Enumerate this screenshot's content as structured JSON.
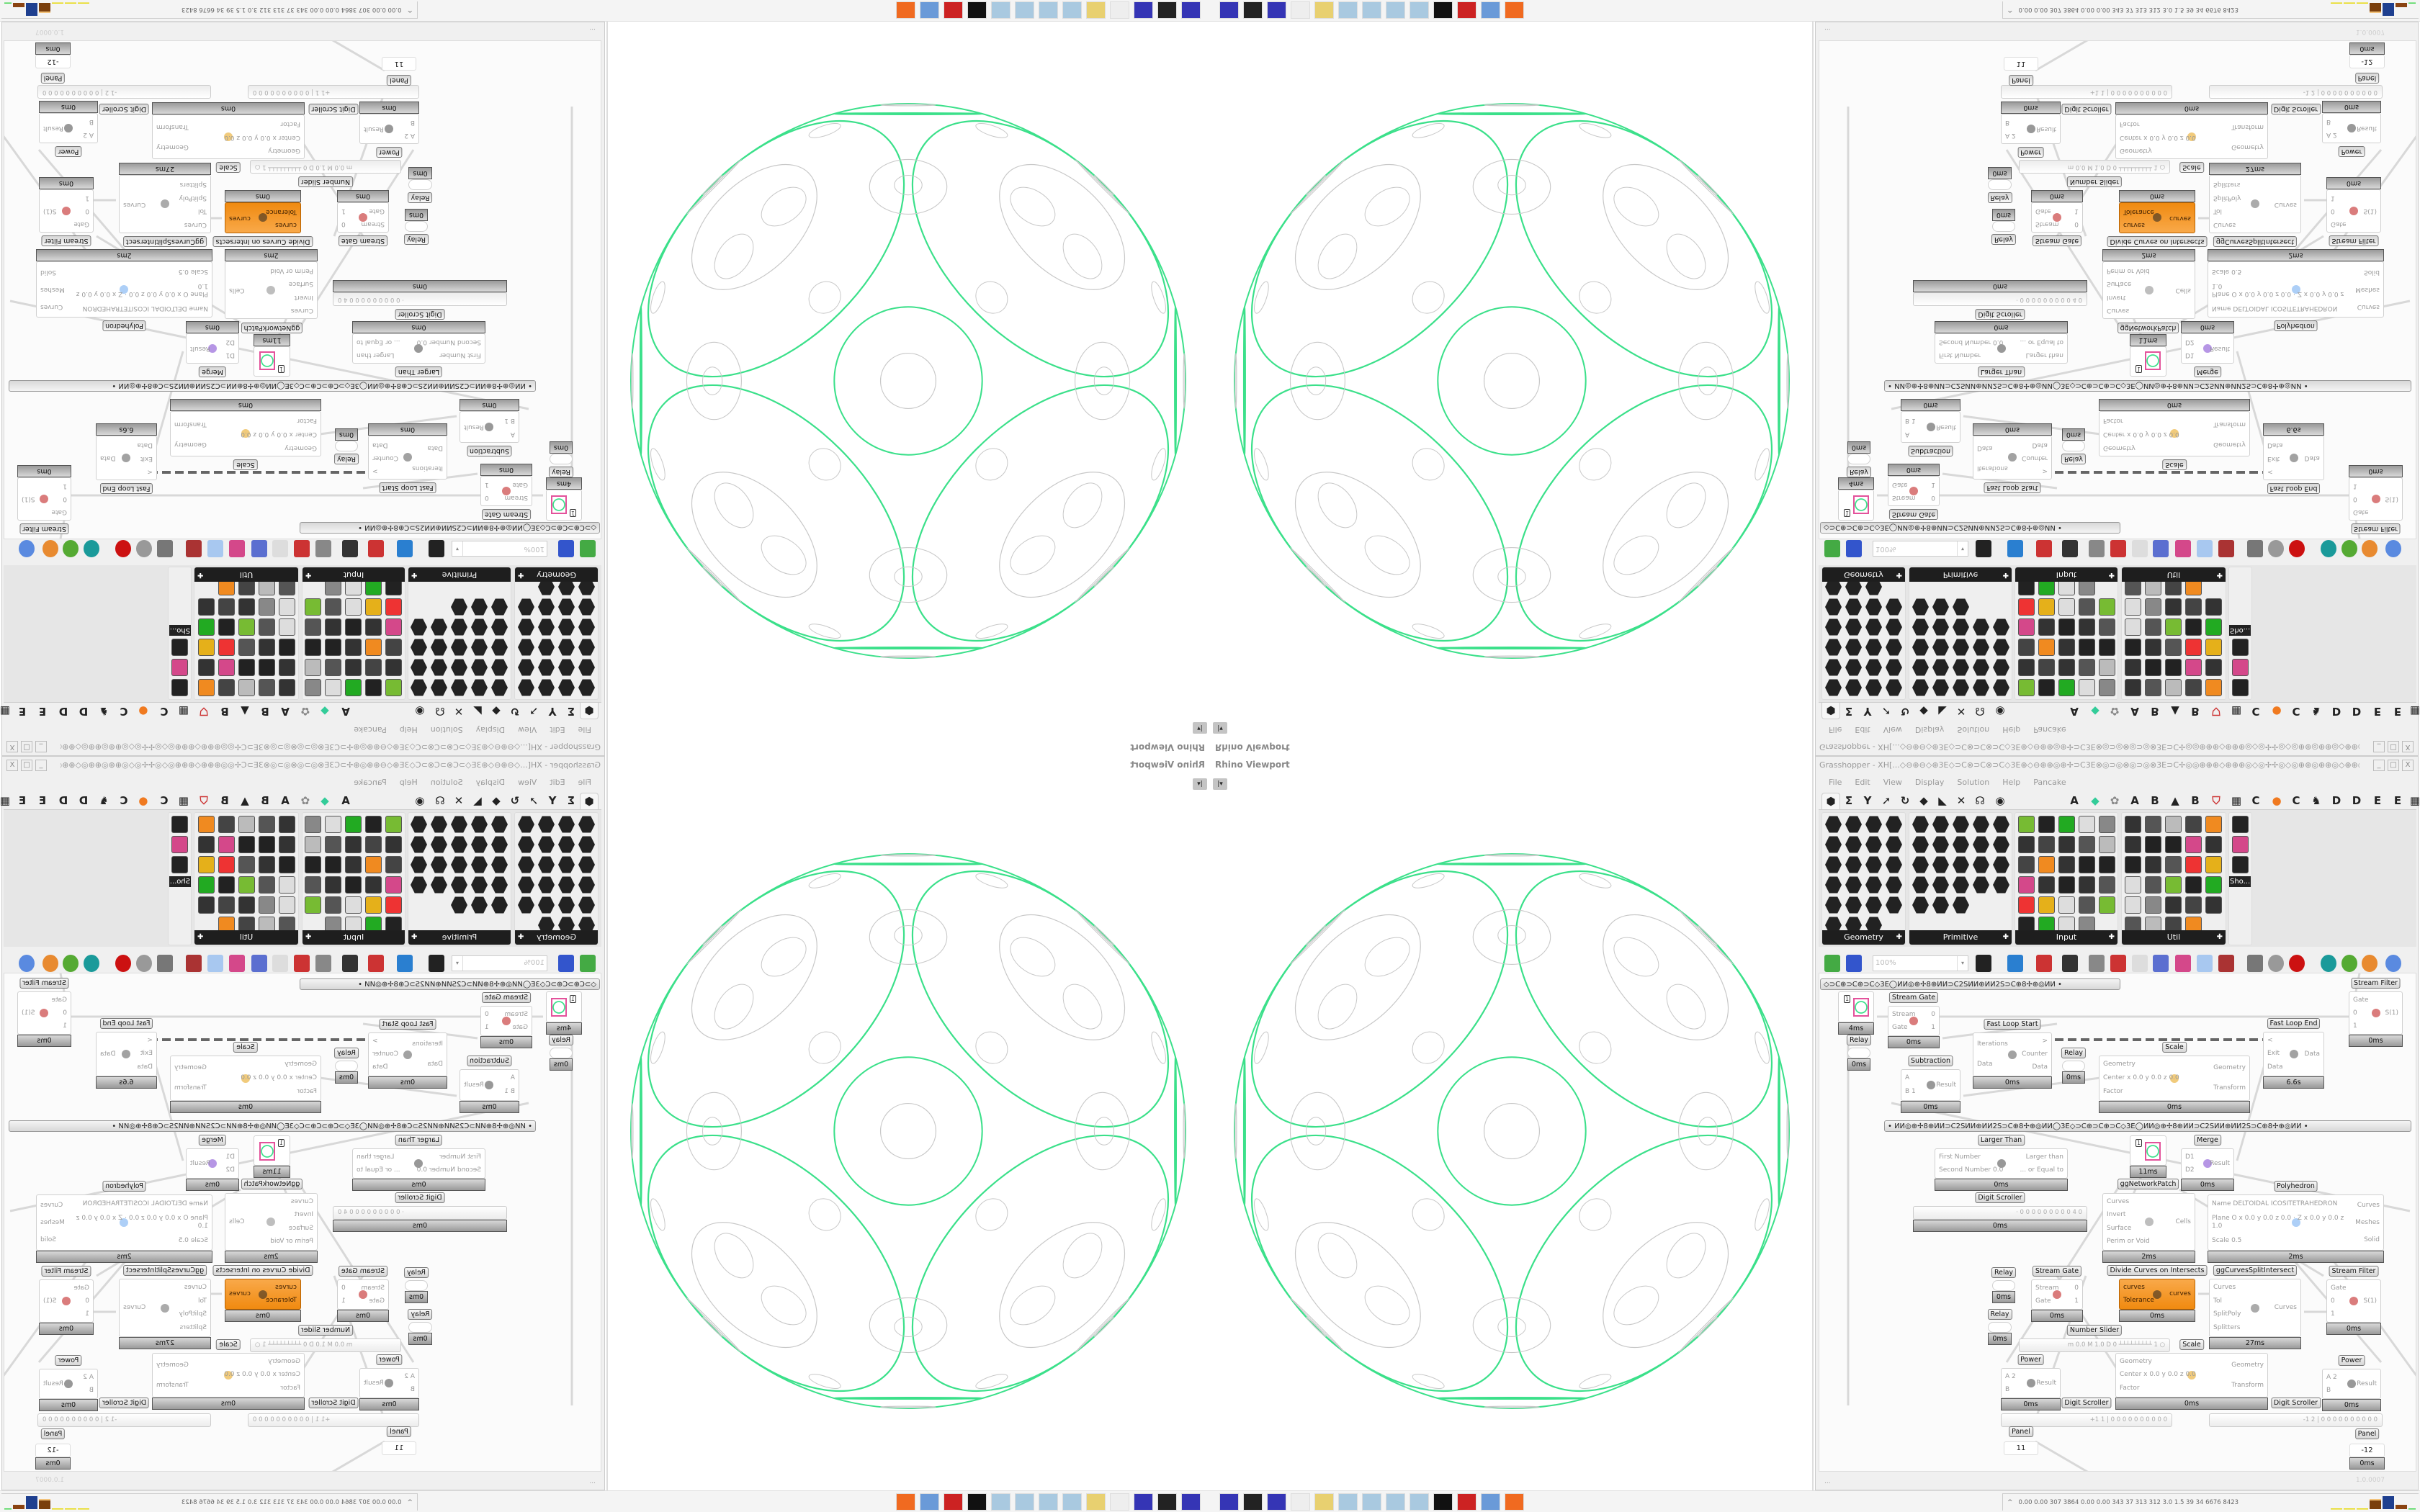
{
  "viewport": {
    "label": "Rhino Viewport",
    "dropdown_icon": "caret-down-icon"
  },
  "grasshopper": {
    "title": "Grasshopper - XH[...◇⊖⊕⊖◇⊕3E◇⊃C⊗⊃C⊗⊃C◇3E⊕◇⊖⊕⊕◎⊕✢⊃C3E⊗◎⊃◎⊗◎⊃◎⊗3E⊃C✢◎◎⊕⊕⊕◇⊕⊕⊕◎◇◎✢✢◎◇◎⊕⊕◎⊕⊕◎◇⊕⊕◎◎✢⊃C3E⊗◎⊃...",
    "window_buttons": [
      "_",
      "□",
      "X"
    ],
    "menu": [
      "File",
      "Edit",
      "View",
      "Display",
      "Solution",
      "Help",
      "Pancake"
    ],
    "icon_tabs": [
      "params-tab-icon",
      "maths-tab-icon",
      "sets-tab-icon",
      "vector-tab-icon",
      "curve-tab-icon",
      "surface-tab-icon",
      "mesh-tab-icon",
      "intersect-tab-icon",
      "transform-tab-icon",
      "display-tab-icon"
    ],
    "letter_tabs": [
      "A",
      "◆",
      "✿",
      "A",
      "B",
      "▲",
      "B",
      "⛉",
      "▦",
      "C",
      "●",
      "C",
      "♞",
      "D",
      "D",
      "E",
      "E",
      "▦"
    ],
    "palette_panels": [
      {
        "title": "Geometry",
        "count": 23
      },
      {
        "title": "Primitive",
        "count": 23
      },
      {
        "title": "Input",
        "count": 29
      },
      {
        "title": "Util",
        "count": 29
      },
      {
        "title": "",
        "count": 3,
        "last_label": "Sho..."
      }
    ],
    "toolbar": {
      "zoom_value": "100%",
      "icons": [
        "new-file-icon",
        "save-icon",
        "zoom-extents-icon",
        "preview-eye-icon",
        "sketch-pen-icon",
        "canvas-button-icon",
        "at-icon",
        "gha-icon",
        "window-icon",
        "search-icon",
        "package-icon",
        "bulb-icon",
        "wires-icon",
        "shaded-preview-icon",
        "wireframe-preview-icon",
        "red-cube-icon",
        "teal-shape-icon",
        "green-shape-icon",
        "orange-sphere-icon",
        "blue-sphere-icon"
      ]
    },
    "groups": [
      {
        "text": "◇⊃C⊕⊃C⊕⊃C◇3E◯ИИ◎⊕✢8⊕ИИ⊃C2SИИ⊕ИИ2S⊃C⊕8✢⊕◎ИИ      •"
      },
      {
        "text": "•      ИИ◎⊕✢8⊕ИИ⊃C2SИИ⊕ИИ2S⊃C⊕8✢⊕◎ИИ◯3E◇⊃C⊕⊃C⊕⊃C◇3E◯ИИ◎⊕✢8⊕ИИ⊃C2SИИ⊕ИИ2S⊃C⊕8✢⊕◎ИИ      •"
      }
    ],
    "nodes": [
      {
        "type": "param",
        "value": "1",
        "time": "4ms"
      },
      {
        "type": "relay",
        "label": "Relay",
        "time": "0ms"
      },
      {
        "type": "comp",
        "label": "Stream Gate",
        "inputs": [
          "Stream",
          "Gate"
        ],
        "outputs": [
          "0",
          "1"
        ],
        "time": "0ms"
      },
      {
        "type": "comp",
        "label": "Fast Loop Start",
        "inputs": [
          "Iterations",
          "Data"
        ],
        "outputs": [
          ">",
          "Counter",
          "Data"
        ],
        "time": "0ms"
      },
      {
        "type": "relay",
        "label": "Relay",
        "time": "0ms"
      },
      {
        "type": "comp",
        "label": "Subtraction",
        "inputs": [
          "A",
          "B 1"
        ],
        "outputs": [
          "Result"
        ],
        "time": "0ms"
      },
      {
        "type": "comp",
        "label": "Scale",
        "inputs": [
          "Geometry",
          "Center x 0.0 y 0.0 z 0.0",
          "Factor"
        ],
        "outputs": [
          "Geometry",
          "Transform"
        ],
        "time": "0ms"
      },
      {
        "type": "comp",
        "label": "Fast Loop End",
        "inputs": [
          "<",
          "Exit",
          "Data"
        ],
        "outputs": [
          "Data"
        ],
        "time": "6.6s"
      },
      {
        "type": "comp",
        "label": "Stream Filter",
        "inputs": [
          "Gate",
          "0",
          "1"
        ],
        "outputs": [
          "S(1)"
        ],
        "time": "0ms"
      },
      {
        "type": "comp",
        "label": "Larger Than",
        "inputs": [
          "First Number",
          "Second Number 0.0"
        ],
        "outputs": [
          "Larger than",
          "... or Equal to"
        ],
        "time": "0ms"
      },
      {
        "type": "param",
        "label": "ggNetworkPatch",
        "value": "1",
        "time": "11ms"
      },
      {
        "type": "comp",
        "label": "Merge",
        "inputs": [
          "D1",
          "D2"
        ],
        "outputs": [
          "Result"
        ],
        "time": "0ms"
      },
      {
        "type": "slider",
        "label": "Digit Scroller",
        "value": "· 0 0 0 0 0 0 0 0 0 4 0",
        "time": "0ms"
      },
      {
        "type": "comp",
        "inputs": [
          "Curves",
          "Invert",
          "Surface",
          "Perim or Void"
        ],
        "outputs": [
          "Cells"
        ],
        "time": "2ms"
      },
      {
        "type": "comp",
        "label": "Polyhedron",
        "inputs": [
          "Name DELTOIDAL ICOSITETRAHEDRON",
          "Plane  O x 0.0 y 0.0 z 0.0 · Z x 0.0 y 0.0 z 1.0",
          "Scale 0.5"
        ],
        "outputs": [
          "Curves",
          "Meshes",
          "Solid"
        ],
        "time": "2ms"
      },
      {
        "type": "relay",
        "label": "Relay",
        "time": "0ms"
      },
      {
        "type": "relay",
        "label": "Relay",
        "time": "0ms"
      },
      {
        "type": "comp",
        "label": "Stream Gate",
        "inputs": [
          "Stream",
          "Gate"
        ],
        "outputs": [
          "0",
          "1"
        ],
        "time": "0ms"
      },
      {
        "type": "comp",
        "label": "Divide Curves on Intersects",
        "inputs": [
          "curves",
          "Tolerance"
        ],
        "outputs": [
          "curves"
        ],
        "time": "0ms",
        "accent": "#f39a2a"
      },
      {
        "type": "comp",
        "label": "ggCurvesSplitIntersect",
        "inputs": [
          "Curves",
          "Tol",
          "SplitPoly",
          "Splitters"
        ],
        "outputs": [
          "Curves"
        ],
        "time": "27ms"
      },
      {
        "type": "comp",
        "label": "Stream Filter",
        "inputs": [
          "Gate",
          "0",
          "1"
        ],
        "outputs": [
          "S(1)"
        ],
        "time": "0ms"
      },
      {
        "type": "slider",
        "label": "Number Slider",
        "value": "m 0.0  M 1.0  D 0   ┴┴┴┴┴┴┴┴┴ 1 ○"
      },
      {
        "type": "comp",
        "label": "Scale",
        "inputs": [
          "Geometry",
          "Center x 0.0 y 0.0 z 0.0",
          "Factor"
        ],
        "outputs": [
          "Geometry",
          "Transform"
        ],
        "time": "0ms"
      },
      {
        "type": "comp",
        "label": "Power",
        "inputs": [
          "A 2",
          "B"
        ],
        "outputs": [
          "Result"
        ],
        "time": "0ms"
      },
      {
        "type": "comp",
        "label": "Power",
        "inputs": [
          "A 2",
          "B"
        ],
        "outputs": [
          "Result"
        ],
        "time": "0ms"
      },
      {
        "type": "slider",
        "label": "Digit Scroller",
        "value": "+1 1 | 0 0 0 0 0 0 0 0 0 0"
      },
      {
        "type": "slider",
        "label": "Digit Scroller",
        "value": "-1 2 | 0 0 0 0 0 0 0 0 0 0"
      },
      {
        "type": "panel",
        "label": "Panel",
        "value": "11"
      },
      {
        "type": "panel",
        "label": "Panel",
        "value": "-12",
        "time": "0ms"
      }
    ],
    "status": {
      "left": "...",
      "version": "1.0.0007"
    }
  },
  "taskbar": {
    "apps": [
      "floppy-32-icon",
      "terminal-icon",
      "terminal-icon",
      "floppy-64-icon",
      "blank-icon",
      "folder-icon",
      "notepad-icon",
      "notepad-icon",
      "notepad-icon",
      "notepad-icon",
      "rhino-icon",
      "red-app-icon",
      "calculator-icon",
      "firefox-icon"
    ],
    "tray_text": "0.00 0.00 307 3864 0.00 0.00 343  37  313  312  3.0  1.5  39  34  6676 8423",
    "tray_expand": "^"
  },
  "colors": {
    "wireframe_green": "#3be08a",
    "wireframe_gray": "#c8c8c8",
    "accent_orange": "#f39a2a",
    "canvas_bg": "#fbfbfb"
  }
}
